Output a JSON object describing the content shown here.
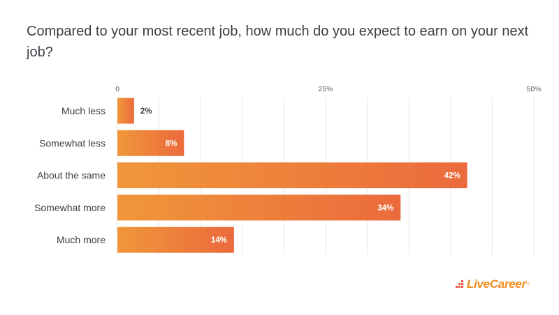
{
  "chart_data": {
    "type": "bar",
    "orientation": "horizontal",
    "title": "Compared to your most recent job, how much do you expect to earn on your next job?",
    "categories": [
      "Much less",
      "Somewhat less",
      "About the same",
      "Somewhat more",
      "Much more"
    ],
    "values": [
      2,
      8,
      42,
      34,
      14
    ],
    "value_labels": [
      "2%",
      "8%",
      "42%",
      "34%",
      "14%"
    ],
    "xlabel": "",
    "ylabel": "",
    "xlim": [
      0,
      50
    ],
    "ticks": [
      0,
      25,
      50
    ],
    "tick_labels": [
      "0",
      "25%",
      "50%"
    ],
    "grid_step": 5,
    "grid": true,
    "legend": "none",
    "colors": {
      "bar_start": "#f0973a",
      "bar_end": "#eb6a3c",
      "grid": "#e6e6e6",
      "label_inside": "#ffffff",
      "label_outside": "#3c3f45"
    }
  },
  "brand": {
    "name": "LiveCareer",
    "registered": "®",
    "color": "#f28c1e",
    "dot_color": "#e8553f"
  }
}
